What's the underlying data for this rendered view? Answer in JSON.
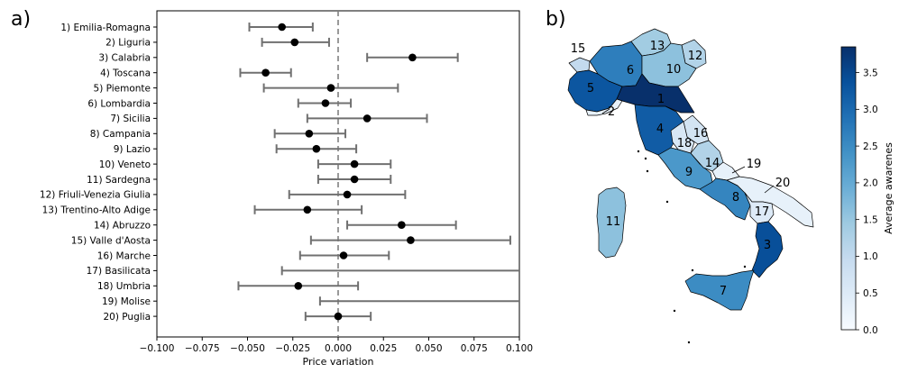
{
  "panel_a": {
    "label": "a)",
    "chart_data": {
      "type": "scatter",
      "title": "",
      "xlabel": "Price variation",
      "ylabel": "",
      "xlim": [
        -0.1,
        0.1
      ],
      "xticks": [
        "−0.100",
        "−0.075",
        "−0.050",
        "−0.025",
        "0.000",
        "0.025",
        "0.050",
        "0.075",
        "0.100"
      ],
      "xtick_values": [
        -0.1,
        -0.075,
        -0.05,
        -0.025,
        0,
        0.025,
        0.05,
        0.075,
        0.1
      ],
      "reference_line_x": 0,
      "grid": false,
      "categories": [
        "1) Emilia-Romagna",
        "2) Liguria",
        "3) Calabria",
        "4) Toscana",
        "5) Piemonte",
        "6) Lombardia",
        "7) Sicilia",
        "8) Campania",
        "9) Lazio",
        "10) Veneto",
        "11) Sardegna",
        "12) Friuli-Venezia Giulia",
        "13) Trentino-Alto Adige",
        "14) Abruzzo",
        "15) Valle d'Aosta",
        "16) Marche",
        "17) Basilicata",
        "18) Umbria",
        "19) Molise",
        "20) Puglia"
      ],
      "estimate": [
        -0.031,
        -0.024,
        0.041,
        -0.04,
        -0.004,
        -0.007,
        0.016,
        -0.016,
        -0.012,
        0.009,
        0.009,
        0.005,
        -0.017,
        0.035,
        0.04,
        0.003,
        null,
        -0.022,
        null,
        0.0
      ],
      "ci_low": [
        -0.049,
        -0.042,
        0.016,
        -0.054,
        -0.041,
        -0.022,
        -0.017,
        -0.035,
        -0.034,
        -0.011,
        -0.011,
        -0.027,
        -0.046,
        0.005,
        -0.015,
        -0.021,
        -0.031,
        -0.055,
        -0.01,
        -0.018
      ],
      "ci_high": [
        -0.014,
        -0.005,
        0.066,
        -0.026,
        0.033,
        0.007,
        0.049,
        0.004,
        0.01,
        0.029,
        0.029,
        0.037,
        0.013,
        0.065,
        0.095,
        0.028,
        0.1,
        0.011,
        0.1,
        0.018
      ]
    }
  },
  "panel_b": {
    "label": "b)",
    "chart_data": {
      "type": "heatmap",
      "title": "",
      "colorbar_label": "Average awarenes",
      "colorbar_range": [
        0.0,
        3.85
      ],
      "colorbar_ticks": [
        "0.0",
        "0.5",
        "1.0",
        "1.5",
        "2.0",
        "2.5",
        "3.0",
        "3.5"
      ],
      "colorbar_tick_values": [
        0,
        0.5,
        1,
        1.5,
        2,
        2.5,
        3,
        3.5
      ],
      "colormap": "Blues",
      "region_values": {
        "1": 3.85,
        "2": 0.3,
        "3": 3.4,
        "4": 3.2,
        "5": 3.3,
        "6": 2.7,
        "7": 2.5,
        "8": 2.6,
        "9": 2.3,
        "10": 1.6,
        "11": 1.6,
        "12": 1.2,
        "13": 1.4,
        "14": 1.2,
        "15": 1.0,
        "16": 0.7,
        "17": 0.5,
        "18": 0.6,
        "19": 0.3,
        "20": 0.3
      },
      "region_labels": [
        "1",
        "2",
        "3",
        "4",
        "5",
        "6",
        "7",
        "8",
        "9",
        "10",
        "11",
        "12",
        "13",
        "14",
        "15",
        "16",
        "17",
        "18",
        "19",
        "20"
      ]
    }
  }
}
